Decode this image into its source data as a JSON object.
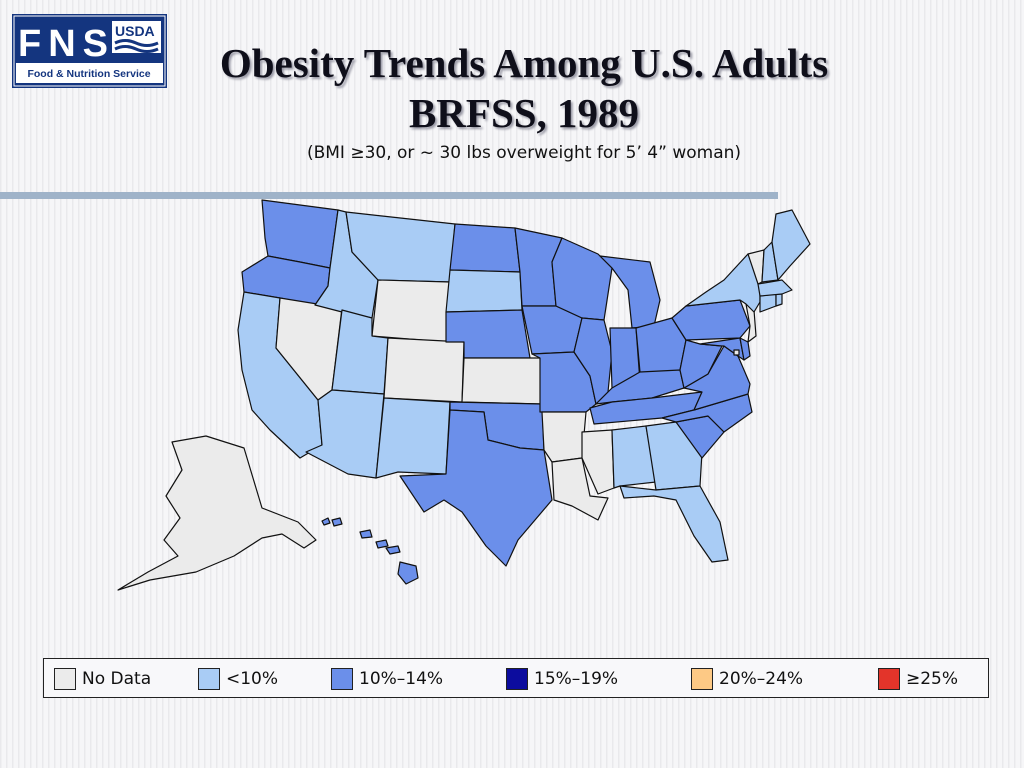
{
  "logo": {
    "main_text": "FNS",
    "agency": "USDA",
    "service": "Food & Nutrition Service"
  },
  "title_line1": "Obesity Trends Among U.S. Adults",
  "title_line2": "BRFSS, 1989",
  "subtitle": "(BMI ≥30, or ~ 30 lbs overweight for 5’ 4” woman)",
  "legend": [
    {
      "key": "nodata",
      "label": "No Data",
      "color": "#ebebeb"
    },
    {
      "key": "lt10",
      "label": "<10%",
      "color": "#a9ccf5"
    },
    {
      "key": "p10_14",
      "label": "10%–14%",
      "color": "#6b8fea"
    },
    {
      "key": "p15_19",
      "label": "15%–19%",
      "color": "#0c0c9e"
    },
    {
      "key": "p20_24",
      "label": "20%–24%",
      "color": "#fdc985"
    },
    {
      "key": "ge25",
      "label": "≥25%",
      "color": "#e3342a"
    }
  ],
  "state_categories": {
    "WA": "p10_14",
    "OR": "p10_14",
    "CA": "lt10",
    "NV": "nodata",
    "ID": "lt10",
    "MT": "lt10",
    "WY": "nodata",
    "UT": "lt10",
    "AZ": "lt10",
    "CO": "nodata",
    "NM": "lt10",
    "ND": "p10_14",
    "SD": "lt10",
    "NE": "p10_14",
    "KS": "nodata",
    "OK": "p10_14",
    "TX": "p10_14",
    "MN": "p10_14",
    "IA": "p10_14",
    "MO": "p10_14",
    "AR": "nodata",
    "LA": "nodata",
    "WI": "p10_14",
    "IL": "p10_14",
    "MI": "p10_14",
    "IN": "p10_14",
    "OH": "p10_14",
    "KY": "p10_14",
    "TN": "p10_14",
    "MS": "nodata",
    "AL": "lt10",
    "GA": "lt10",
    "FL": "lt10",
    "SC": "p10_14",
    "NC": "p10_14",
    "VA": "p10_14",
    "WV": "p10_14",
    "MD": "p10_14",
    "DE": "p10_14",
    "PA": "p10_14",
    "NY": "lt10",
    "NJ": "nodata",
    "CT": "lt10",
    "RI": "lt10",
    "MA": "lt10",
    "VT": "nodata",
    "NH": "lt10",
    "ME": "lt10",
    "AK": "nodata",
    "HI": "p10_14",
    "DC": "nodata"
  }
}
